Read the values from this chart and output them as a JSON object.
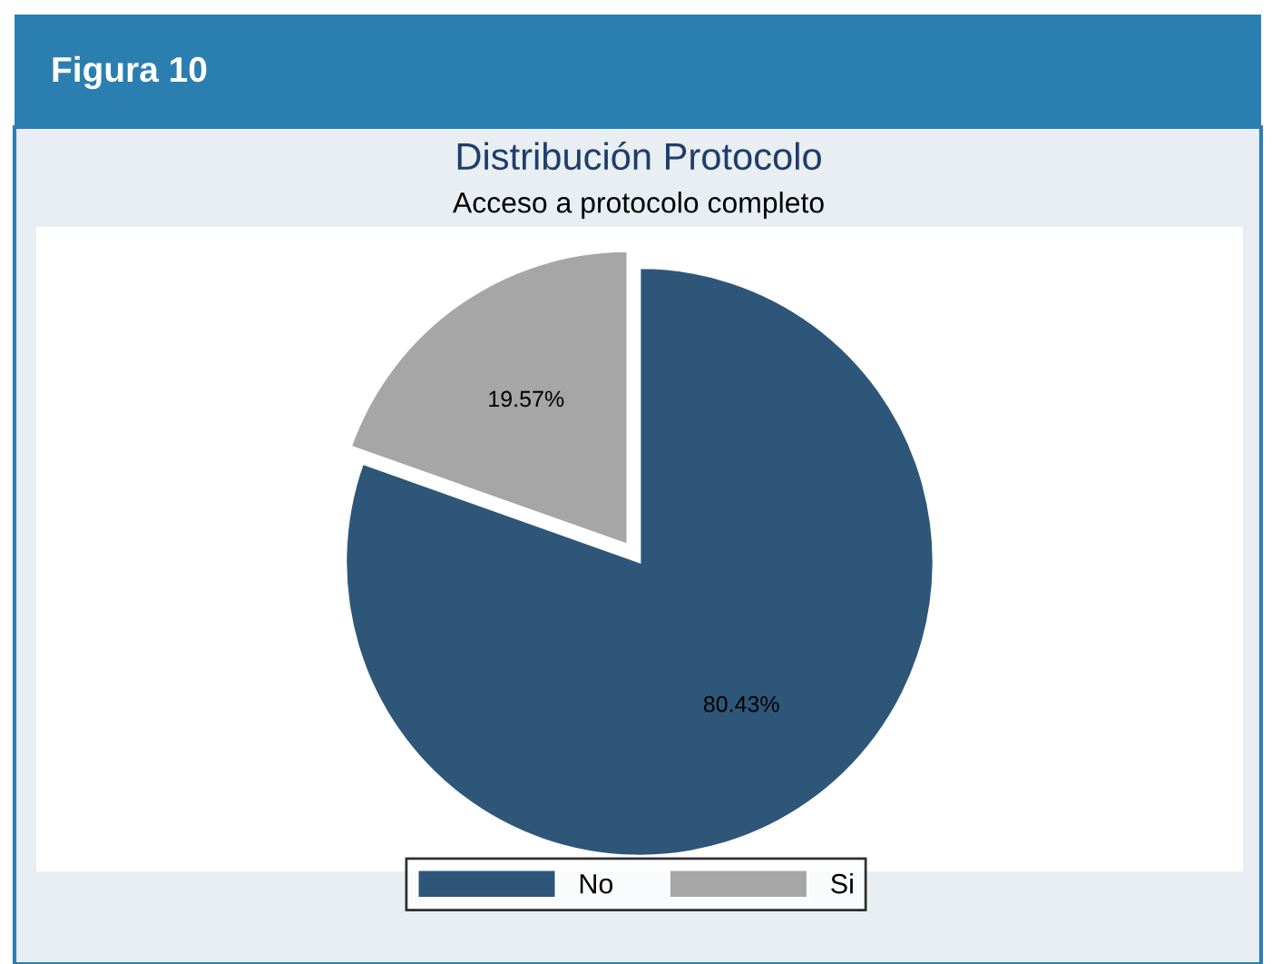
{
  "chart_data": {
    "type": "pie",
    "title": "Distribución Protocolo",
    "subtitle": "Acceso a protocolo completo",
    "annotations": [
      "Figura 10"
    ],
    "categories": [
      "No",
      "Si"
    ],
    "values": [
      80.43,
      19.57
    ],
    "colors": [
      "#2e5678",
      "#a6a6a6"
    ],
    "value_labels": [
      "80.43%",
      "19.57%"
    ],
    "legend": "bottom"
  }
}
